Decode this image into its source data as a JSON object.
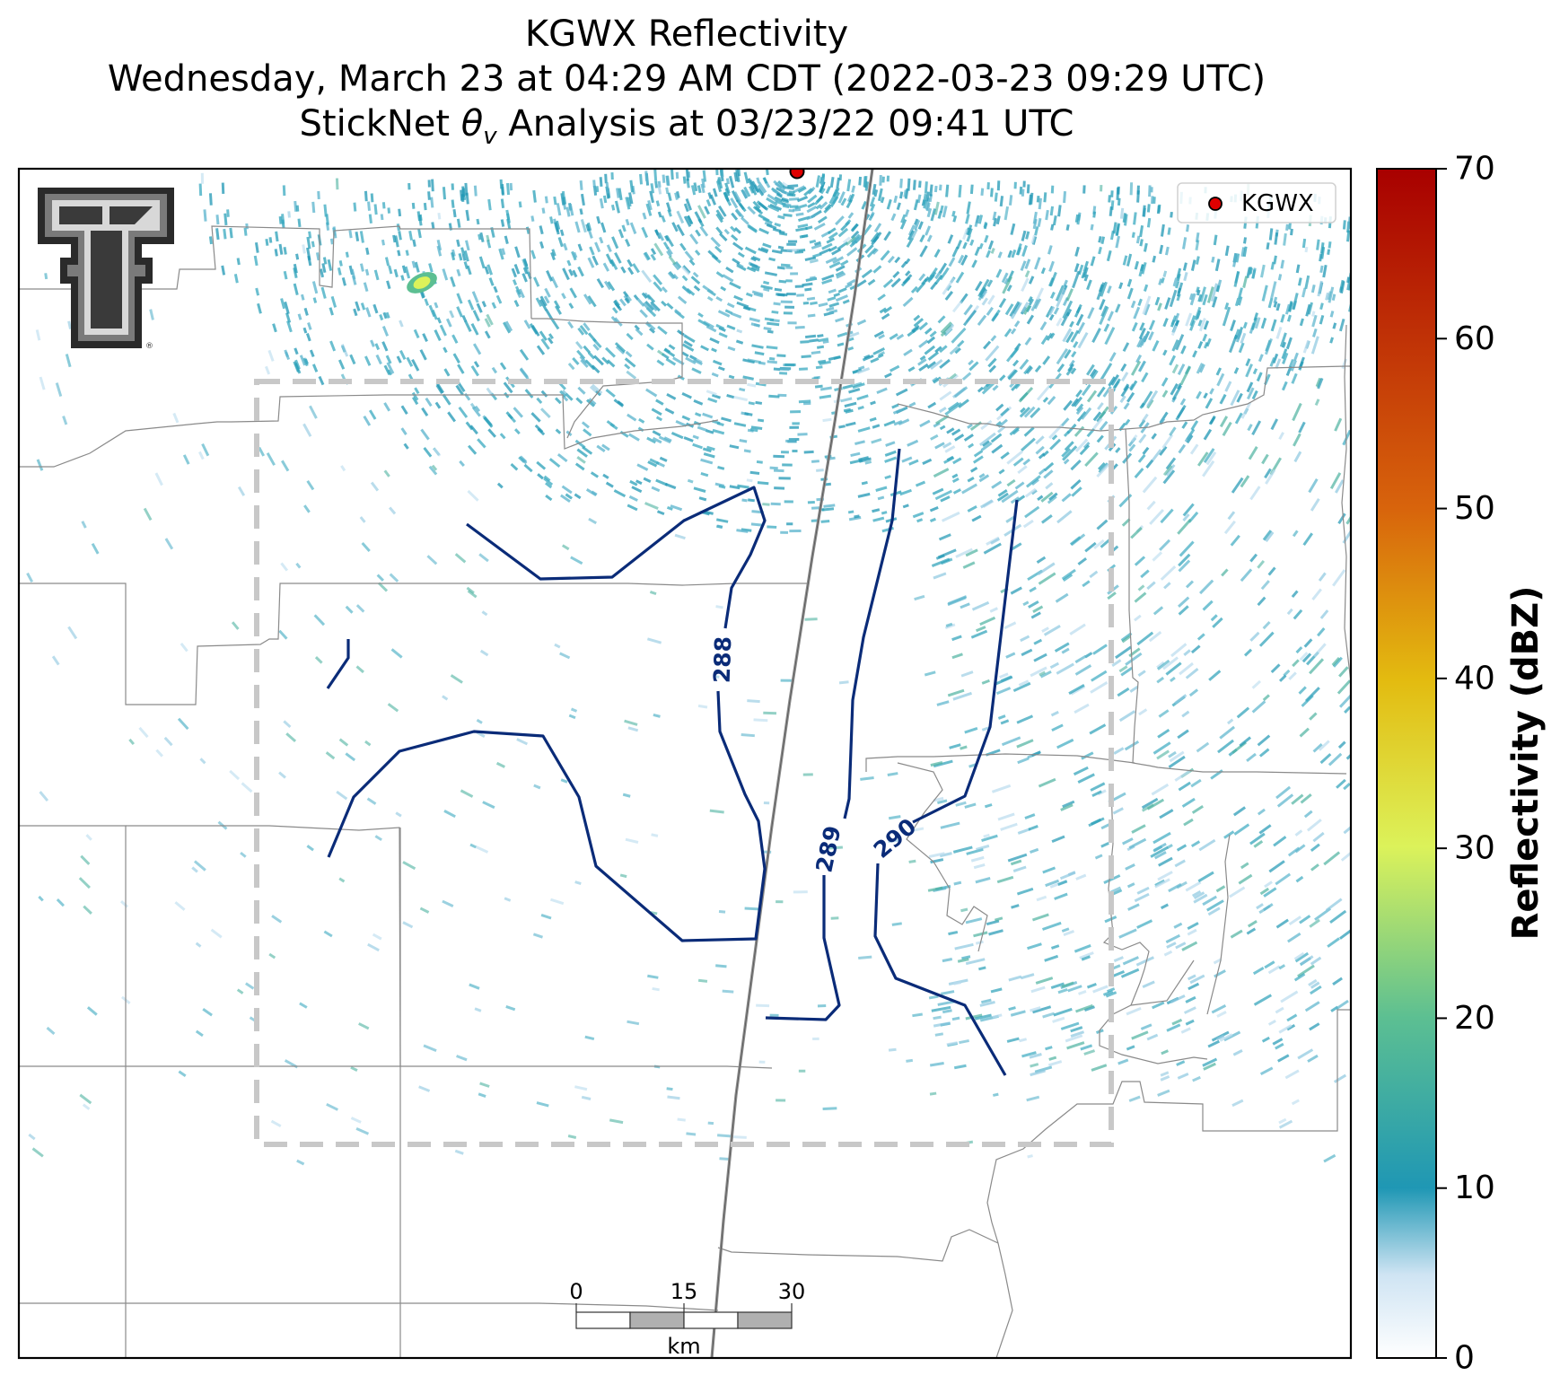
{
  "title": {
    "line1": "KGWX Reflectivity",
    "line2": "Wednesday, March 23 at 04:29 AM CDT (2022-03-23 09:29 UTC)",
    "line3": "StickNet θv Analysis at 03/23/22 09:41 UTC"
  },
  "legend": {
    "label": "KGWX",
    "marker_color": "#e00000"
  },
  "radar_site": {
    "name": "KGWX"
  },
  "colorbar": {
    "label": "Reflectivity (dBZ)",
    "min": 0,
    "max": 70,
    "ticks": [
      "0",
      "10",
      "20",
      "30",
      "40",
      "50",
      "60",
      "70"
    ],
    "colors": [
      "#ffffff",
      "#cfe4f3",
      "#1f97b4",
      "#5cbf92",
      "#dcf25a",
      "#e3bb10",
      "#d8640c",
      "#a80000"
    ]
  },
  "contours": {
    "color": "#0a2b78",
    "labels": [
      "288",
      "289",
      "290"
    ]
  },
  "scalebar": {
    "ticks": [
      "0",
      "15",
      "30"
    ],
    "unit": "km"
  },
  "logo": {
    "name": "texas-tech-double-t-logo"
  },
  "colors": {
    "boundary": "#8a8a8a",
    "analysis_box": "#c8c8c8",
    "echo": "#2aa0b8"
  }
}
